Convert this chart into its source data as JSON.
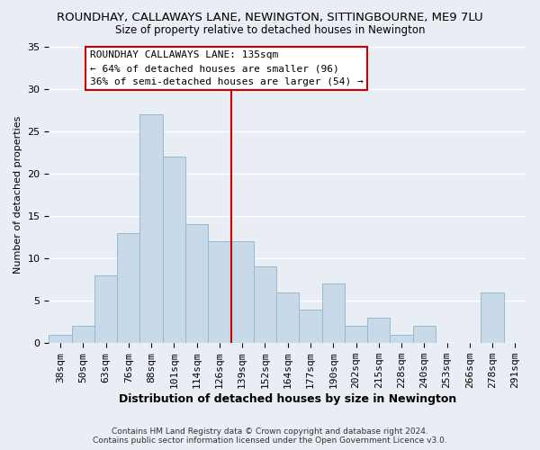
{
  "title": "ROUNDHAY, CALLAWAYS LANE, NEWINGTON, SITTINGBOURNE, ME9 7LU",
  "subtitle": "Size of property relative to detached houses in Newington",
  "xlabel": "Distribution of detached houses by size in Newington",
  "ylabel": "Number of detached properties",
  "bar_labels": [
    "38sqm",
    "50sqm",
    "63sqm",
    "76sqm",
    "88sqm",
    "101sqm",
    "114sqm",
    "126sqm",
    "139sqm",
    "152sqm",
    "164sqm",
    "177sqm",
    "190sqm",
    "202sqm",
    "215sqm",
    "228sqm",
    "240sqm",
    "253sqm",
    "266sqm",
    "278sqm",
    "291sqm"
  ],
  "bar_values": [
    1,
    2,
    8,
    13,
    27,
    22,
    14,
    12,
    12,
    9,
    6,
    4,
    7,
    2,
    3,
    1,
    2,
    0,
    0,
    6,
    0
  ],
  "bar_color": "#c8daea",
  "bar_edge_color": "#9ab8cc",
  "vline_x_index": 8,
  "vline_color": "#cc0000",
  "ylim": [
    0,
    35
  ],
  "yticks": [
    0,
    5,
    10,
    15,
    20,
    25,
    30,
    35
  ],
  "annotation_title": "ROUNDHAY CALLAWAYS LANE: 135sqm",
  "annotation_line1": "← 64% of detached houses are smaller (96)",
  "annotation_line2": "36% of semi-detached houses are larger (54) →",
  "annotation_box_color": "#ffffff",
  "annotation_box_edge": "#cc0000",
  "footer1": "Contains HM Land Registry data © Crown copyright and database right 2024.",
  "footer2": "Contains public sector information licensed under the Open Government Licence v3.0.",
  "background_color": "#e8eef4",
  "grid_color": "#ffffff",
  "title_fontsize": 9.5,
  "subtitle_fontsize": 8.5,
  "xlabel_fontsize": 9,
  "ylabel_fontsize": 8,
  "tick_fontsize": 8,
  "annotation_fontsize": 8,
  "footer_fontsize": 6.5
}
